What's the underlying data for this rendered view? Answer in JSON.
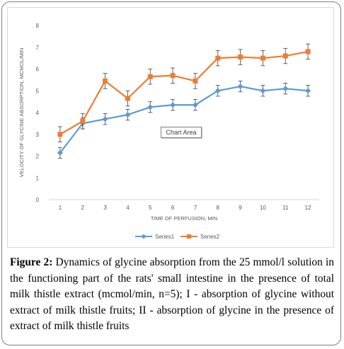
{
  "chart_data": {
    "type": "line",
    "xlabel": "TIME OF PERFUSION, MIN",
    "ylabel": "VELOCITY OF GLYCINE ABSORPTION, MCMOL/MIN",
    "x": [
      1,
      2,
      3,
      4,
      5,
      6,
      7,
      8,
      9,
      10,
      11,
      12
    ],
    "ylim": [
      0,
      8
    ],
    "yticks": [
      0,
      1,
      2,
      3,
      4,
      5,
      6,
      7,
      8
    ],
    "grid": false,
    "legend_position": "bottom",
    "series": [
      {
        "name": "Series1",
        "color": "#5b9bd5",
        "marker": "diamond",
        "values": [
          2.15,
          3.5,
          3.7,
          3.9,
          4.25,
          4.35,
          4.35,
          5.0,
          5.2,
          5.0,
          5.1,
          5.0
        ],
        "errors": [
          0.25,
          0.25,
          0.25,
          0.25,
          0.25,
          0.25,
          0.25,
          0.25,
          0.25,
          0.25,
          0.25,
          0.25
        ]
      },
      {
        "name": "Series2",
        "color": "#ed7d31",
        "marker": "square",
        "values": [
          3.0,
          3.6,
          5.45,
          4.65,
          5.65,
          5.7,
          5.45,
          6.5,
          6.55,
          6.5,
          6.6,
          6.8
        ],
        "errors": [
          0.35,
          0.35,
          0.35,
          0.35,
          0.35,
          0.35,
          0.35,
          0.35,
          0.35,
          0.35,
          0.35,
          0.35
        ]
      }
    ]
  },
  "tooltip": "Chart Area",
  "caption": {
    "label": "Figure 2:",
    "text": "Dynamics of glycine absorption from the 25 mmol/l solution in the functioning part of the rats' small intestine in the presence of total milk thistle extract (mcmol/min, n=5); I - absorption of glycine without extract of milk thistle fruits; II - absorption of glycine in the presence of extract of milk thistle fruits"
  }
}
